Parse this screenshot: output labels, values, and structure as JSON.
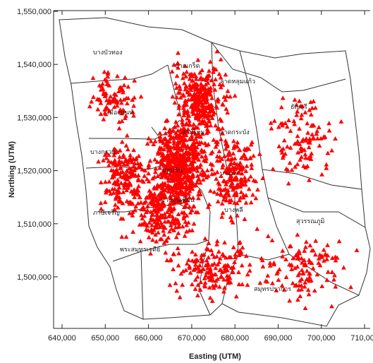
{
  "axes": {
    "x_title": "Easting (UTM)",
    "y_title": "Northing (UTM)",
    "x_ticks": [
      "640,000",
      "650,000",
      "660,000",
      "670,000",
      "680,000",
      "690,000",
      "700,000",
      "710,000"
    ],
    "y_ticks": [
      "1,500,000",
      "1,510,000",
      "1,520,000",
      "1,530,000",
      "1,540,000",
      "1,550,000"
    ]
  },
  "district_labels": [
    {
      "name": "label-bang-bua-thong",
      "text": "บางบัวทอง"
    },
    {
      "name": "label-pak-kret",
      "text": "ปากเกร็ด"
    },
    {
      "name": "label-mueang-nonthaburi",
      "text": "เมืองนนท์"
    },
    {
      "name": "label-lat-lum-kaeo",
      "text": "ลาดหลุมแก้ว"
    },
    {
      "name": "label-thanyaburi",
      "text": "ธัญบุรี"
    },
    {
      "name": "label-sai-mai",
      "text": "สายไหม"
    },
    {
      "name": "label-lat-krabang",
      "text": "ลาดกระบัง"
    },
    {
      "name": "label-bang-kruai",
      "text": "บางกรวย"
    },
    {
      "name": "label-phasi-charoen",
      "text": "ภาษีเจริญ"
    },
    {
      "name": "label-pathum-wan",
      "text": "ปทุมวัน"
    },
    {
      "name": "label-bang-na",
      "text": "บางนา"
    },
    {
      "name": "label-bang-phli",
      "text": "บางพลี"
    },
    {
      "name": "label-suvarnabhumi",
      "text": "สุวรรณภูมิ"
    },
    {
      "name": "label-bang-khun-thian",
      "text": "บางขุนเทียน"
    },
    {
      "name": "label-phra-samut-chedi",
      "text": "พระสมุทรเจดีย์"
    },
    {
      "name": "label-samut-prakan",
      "text": "สมุทรปราการ"
    }
  ],
  "series": {
    "marker": "triangle",
    "color": "#ff0000"
  },
  "colors": {
    "boundary": "#333333",
    "axis": "#222222",
    "background": "#ffffff"
  }
}
